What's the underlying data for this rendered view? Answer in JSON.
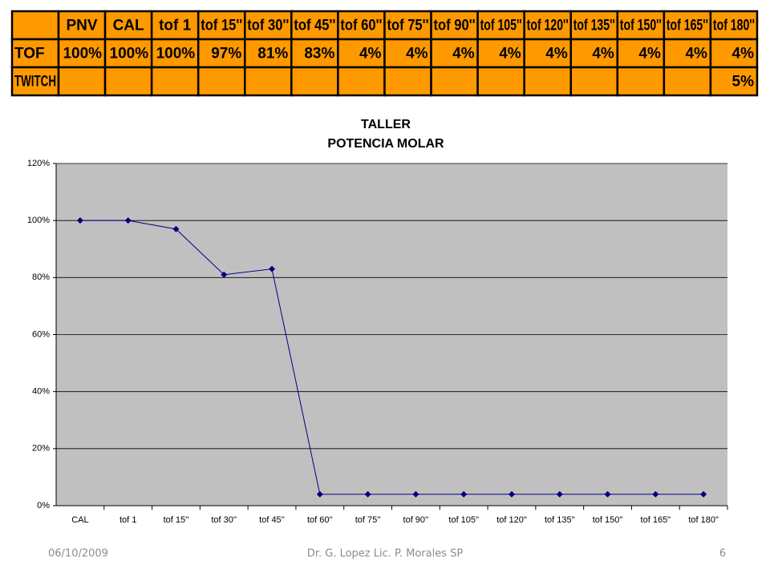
{
  "table": {
    "header": [
      "PNV",
      "CAL",
      "tof 1",
      "tof 15''",
      "tof 30''",
      "tof 45''",
      "tof 60''",
      "tof 75''",
      "tof 90''",
      "tof 105''",
      "tof 120''",
      "tof 135''",
      "tof 150''",
      "tof 165''",
      "tof 180''"
    ],
    "rows": [
      {
        "label": "TOF",
        "cells": [
          "100%",
          "100%",
          "100%",
          "97%",
          "81%",
          "83%",
          "4%",
          "4%",
          "4%",
          "4%",
          "4%",
          "4%",
          "4%",
          "4%",
          "4%"
        ]
      },
      {
        "label": "TWITCH",
        "cells": [
          null,
          null,
          null,
          null,
          null,
          null,
          null,
          null,
          null,
          null,
          null,
          null,
          null,
          null,
          "5%"
        ]
      }
    ]
  },
  "chart_data": {
    "type": "line",
    "title": "TALLER",
    "subtitle": "POTENCIA MOLAR",
    "categories": [
      "CAL",
      "tof 1",
      "tof 15''",
      "tof 30''",
      "tof 45''",
      "tof 60''",
      "tof 75''",
      "tof 90''",
      "tof 105\"",
      "tof 120\"",
      "tof 135\"",
      "tof 150\"",
      "tof 165\"",
      "tof 180\""
    ],
    "values": [
      100,
      100,
      97,
      81,
      83,
      4,
      4,
      4,
      4,
      4,
      4,
      4,
      4,
      4
    ],
    "color": "#000080",
    "ylim": [
      0,
      120
    ],
    "yticks": [
      {
        "value": 0,
        "label": "0%"
      },
      {
        "value": 20,
        "label": "20%"
      },
      {
        "value": 40,
        "label": "40%"
      },
      {
        "value": 60,
        "label": "60%"
      },
      {
        "value": 80,
        "label": "80%"
      },
      {
        "value": 100,
        "label": "100%"
      },
      {
        "value": 120,
        "label": "120%"
      }
    ],
    "grid": true
  },
  "footer": {
    "date": "06/10/2009",
    "author": "Dr. G. Lopez Lic. P. Morales SP",
    "page": "6"
  }
}
